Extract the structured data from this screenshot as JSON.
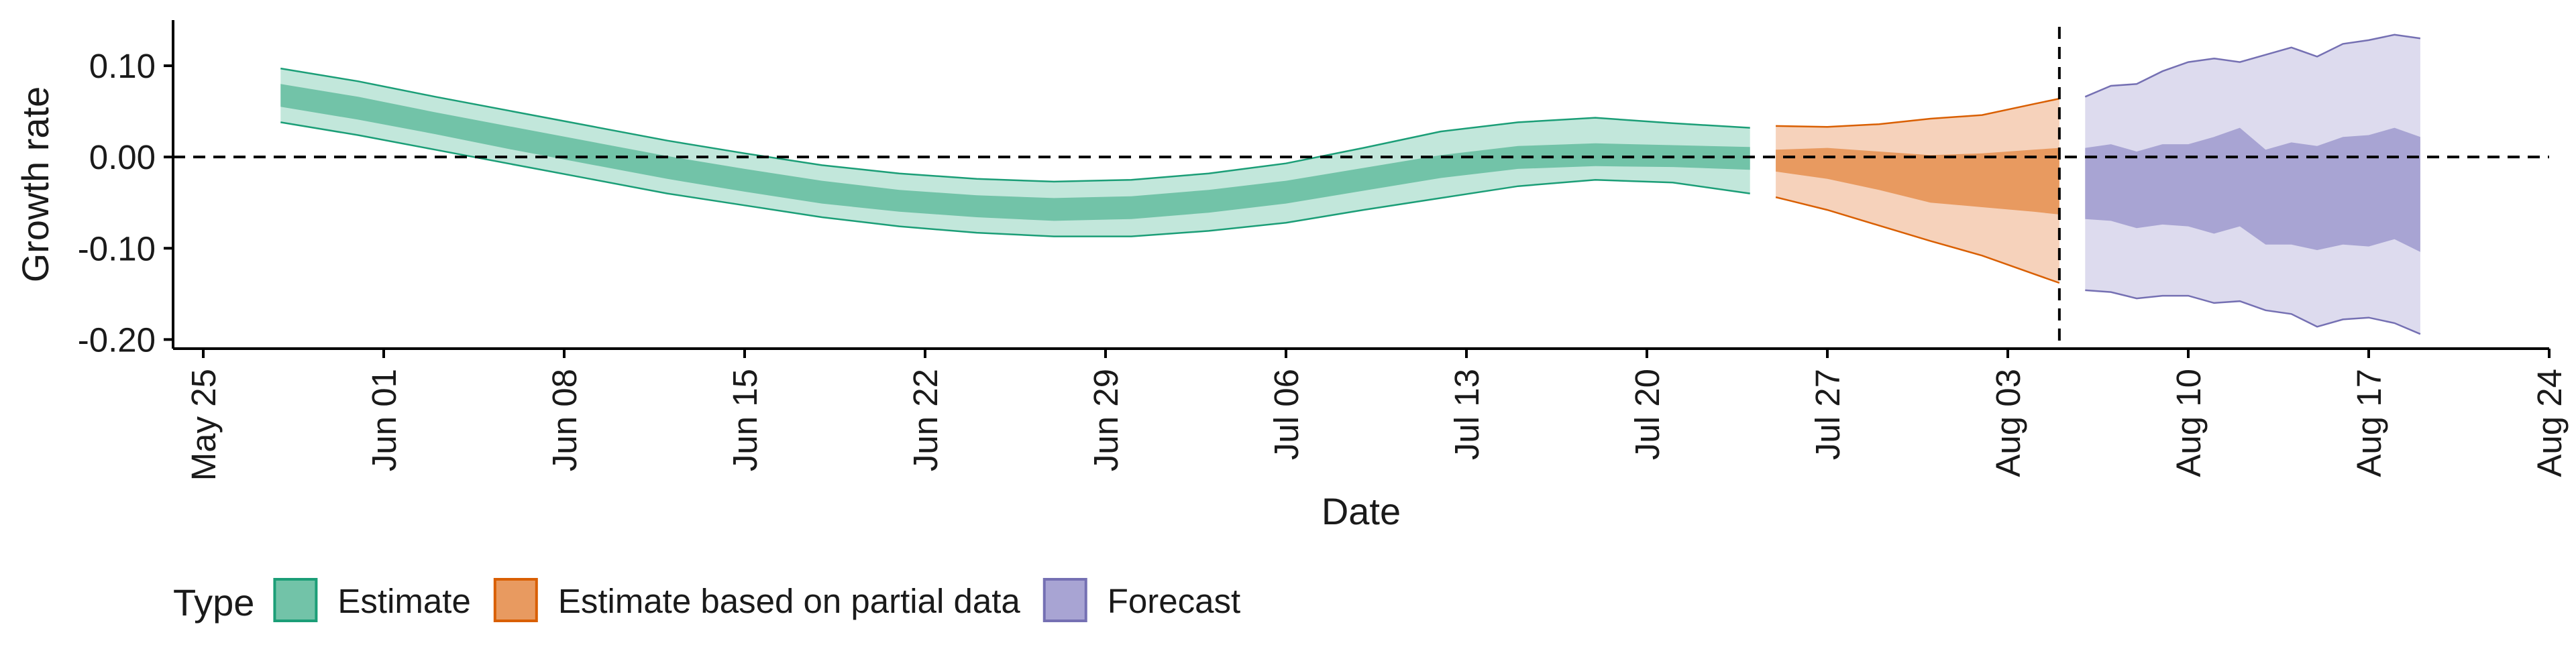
{
  "chart_data": {
    "type": "area",
    "xlabel": "Date",
    "ylabel": "Growth rate",
    "xlim": [
      "2020-05-25",
      "2020-08-24"
    ],
    "ylim": [
      -0.21,
      0.15
    ],
    "x_ticks": [
      "May 25",
      "Jun 01",
      "Jun 08",
      "Jun 15",
      "Jun 22",
      "Jun 29",
      "Jul 06",
      "Jul 13",
      "Jul 20",
      "Jul 27",
      "Aug 03",
      "Aug 10",
      "Aug 17",
      "Aug 24"
    ],
    "x_tick_dates": [
      "2020-05-25",
      "2020-06-01",
      "2020-06-08",
      "2020-06-15",
      "2020-06-22",
      "2020-06-29",
      "2020-07-06",
      "2020-07-13",
      "2020-07-20",
      "2020-07-27",
      "2020-08-03",
      "2020-08-10",
      "2020-08-17",
      "2020-08-24"
    ],
    "y_ticks": [
      0.1,
      0.0,
      -0.1,
      -0.2
    ],
    "y_tick_labels": [
      "0.10",
      "0.00",
      "-0.10",
      "-0.20"
    ],
    "reference_lines": {
      "horizontal_y": 0,
      "vertical_date": "2020-08-05"
    },
    "legend": {
      "title": "Type",
      "position": "bottom"
    },
    "series": [
      {
        "name": "Estimate",
        "color": "#1b9e77",
        "band_colors": {
          "outer": "#c2e7db",
          "inner": "#72c3a8",
          "line": "#1b9e77"
        },
        "x": [
          "2020-05-28",
          "2020-05-31",
          "2020-06-03",
          "2020-06-06",
          "2020-06-09",
          "2020-06-12",
          "2020-06-15",
          "2020-06-18",
          "2020-06-21",
          "2020-06-24",
          "2020-06-27",
          "2020-06-30",
          "2020-07-03",
          "2020-07-06",
          "2020-07-09",
          "2020-07-12",
          "2020-07-15",
          "2020-07-18",
          "2020-07-21",
          "2020-07-24"
        ],
        "outer_lower": [
          0.038,
          0.024,
          0.008,
          -0.008,
          -0.024,
          -0.04,
          -0.053,
          -0.066,
          -0.076,
          -0.083,
          -0.087,
          -0.087,
          -0.081,
          -0.072,
          -0.058,
          -0.045,
          -0.032,
          -0.025,
          -0.028,
          -0.04
        ],
        "inner_lower": [
          0.055,
          0.041,
          0.025,
          0.008,
          -0.008,
          -0.024,
          -0.038,
          -0.051,
          -0.06,
          -0.066,
          -0.07,
          -0.068,
          -0.061,
          -0.051,
          -0.037,
          -0.023,
          -0.013,
          -0.01,
          -0.011,
          -0.014
        ],
        "inner_upper": [
          0.08,
          0.066,
          0.049,
          0.033,
          0.017,
          0.001,
          -0.013,
          -0.026,
          -0.036,
          -0.042,
          -0.045,
          -0.043,
          -0.036,
          -0.026,
          -0.012,
          0.002,
          0.012,
          0.015,
          0.013,
          0.011
        ],
        "outer_upper": [
          0.097,
          0.083,
          0.066,
          0.05,
          0.034,
          0.018,
          0.004,
          -0.009,
          -0.018,
          -0.024,
          -0.027,
          -0.025,
          -0.018,
          -0.007,
          0.01,
          0.028,
          0.038,
          0.043,
          0.037,
          0.032
        ]
      },
      {
        "name": "Estimate based on partial data",
        "color": "#d95f02",
        "band_colors": {
          "outer": "#f6d2bb",
          "inner": "#e89a60",
          "line": "#d95f02"
        },
        "x": [
          "2020-07-25",
          "2020-07-27",
          "2020-07-29",
          "2020-07-31",
          "2020-08-02",
          "2020-08-04",
          "2020-08-05"
        ],
        "outer_lower": [
          -0.044,
          -0.058,
          -0.075,
          -0.092,
          -0.108,
          -0.128,
          -0.138
        ],
        "inner_lower": [
          -0.016,
          -0.024,
          -0.036,
          -0.05,
          -0.055,
          -0.06,
          -0.063
        ],
        "inner_upper": [
          0.008,
          0.01,
          0.006,
          0.002,
          0.004,
          0.008,
          0.01
        ],
        "outer_upper": [
          0.034,
          0.033,
          0.036,
          0.042,
          0.046,
          0.058,
          0.064
        ]
      },
      {
        "name": "Forecast",
        "color": "#7570b3",
        "band_colors": {
          "outer": "#dddbee",
          "inner": "#a8a4d3",
          "line": "#7570b3"
        },
        "x": [
          "2020-08-06",
          "2020-08-07",
          "2020-08-08",
          "2020-08-09",
          "2020-08-10",
          "2020-08-11",
          "2020-08-12",
          "2020-08-13",
          "2020-08-14",
          "2020-08-15",
          "2020-08-16",
          "2020-08-17",
          "2020-08-18",
          "2020-08-19"
        ],
        "outer_lower": [
          -0.146,
          -0.148,
          -0.155,
          -0.152,
          -0.152,
          -0.16,
          -0.158,
          -0.168,
          -0.172,
          -0.186,
          -0.178,
          -0.176,
          -0.182,
          -0.194
        ],
        "inner_lower": [
          -0.068,
          -0.07,
          -0.078,
          -0.074,
          -0.076,
          -0.084,
          -0.076,
          -0.096,
          -0.096,
          -0.102,
          -0.096,
          -0.098,
          -0.09,
          -0.104
        ],
        "inner_upper": [
          0.01,
          0.014,
          0.006,
          0.014,
          0.014,
          0.022,
          0.032,
          0.008,
          0.016,
          0.012,
          0.022,
          0.024,
          0.032,
          0.022
        ],
        "outer_upper": [
          0.066,
          0.078,
          0.08,
          0.094,
          0.104,
          0.108,
          0.104,
          0.112,
          0.12,
          0.11,
          0.124,
          0.128,
          0.134,
          0.13
        ]
      }
    ]
  }
}
